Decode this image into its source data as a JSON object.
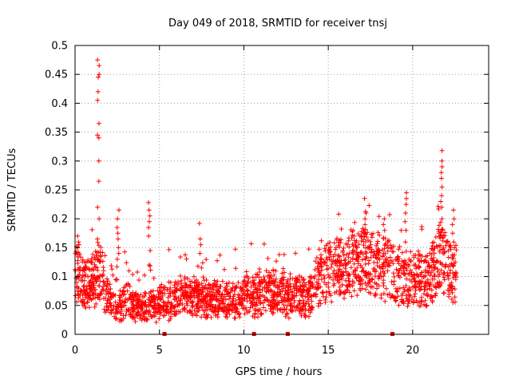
{
  "chart_data": {
    "type": "scatter",
    "title": "Day 049 of 2018, SRMTID for receiver tnsj",
    "xlabel": "GPS time / hours",
    "ylabel": "SRMTID / TECUs",
    "xlim": [
      0,
      24.5
    ],
    "ylim": [
      0,
      0.5
    ],
    "x_ticks": [
      0,
      5,
      10,
      15,
      20
    ],
    "x_tick_labels": [
      "0",
      "5",
      "10",
      "15",
      "20"
    ],
    "y_ticks": [
      0,
      0.05,
      0.1,
      0.15,
      0.2,
      0.25,
      0.3,
      0.35,
      0.4,
      0.45,
      0.5
    ],
    "y_tick_labels": [
      "0",
      "0.05",
      "0.1",
      "0.15",
      "0.2",
      "0.25",
      "0.3",
      "0.35",
      "0.4",
      "0.45",
      "0.5"
    ],
    "grid": true,
    "marker": "+",
    "color": "#ff0000",
    "data_end_hours": 22.6,
    "baseline_profile": [
      [
        0.0,
        0.11
      ],
      [
        0.5,
        0.085
      ],
      [
        1.0,
        0.09
      ],
      [
        1.5,
        0.1
      ],
      [
        2.0,
        0.06
      ],
      [
        2.5,
        0.045
      ],
      [
        3.0,
        0.06
      ],
      [
        3.5,
        0.05
      ],
      [
        4.0,
        0.045
      ],
      [
        4.5,
        0.05
      ],
      [
        5.0,
        0.055
      ],
      [
        6.0,
        0.06
      ],
      [
        7.0,
        0.065
      ],
      [
        8.0,
        0.06
      ],
      [
        9.0,
        0.06
      ],
      [
        10.0,
        0.065
      ],
      [
        11.0,
        0.07
      ],
      [
        12.0,
        0.075
      ],
      [
        13.0,
        0.065
      ],
      [
        14.0,
        0.07
      ],
      [
        14.5,
        0.09
      ],
      [
        15.0,
        0.11
      ],
      [
        16.0,
        0.115
      ],
      [
        17.0,
        0.13
      ],
      [
        18.0,
        0.12
      ],
      [
        19.0,
        0.1
      ],
      [
        19.5,
        0.085
      ],
      [
        20.0,
        0.095
      ],
      [
        21.0,
        0.1
      ],
      [
        21.5,
        0.14
      ],
      [
        22.0,
        0.12
      ],
      [
        22.6,
        0.1
      ]
    ],
    "spikes": [
      {
        "x": 0.2,
        "y": [
          0.17,
          0.16,
          0.155,
          0.15
        ]
      },
      {
        "x": 1.38,
        "y": [
          0.475,
          0.465,
          0.45,
          0.445,
          0.42,
          0.405,
          0.365,
          0.345,
          0.34,
          0.3,
          0.265,
          0.22,
          0.2,
          0.165,
          0.13
        ]
      },
      {
        "x": 2.55,
        "y": [
          0.215,
          0.2,
          0.185,
          0.175,
          0.165,
          0.15,
          0.14,
          0.13
        ]
      },
      {
        "x": 4.4,
        "y": [
          0.228,
          0.215,
          0.205,
          0.195,
          0.185,
          0.17,
          0.145,
          0.12
        ]
      },
      {
        "x": 7.4,
        "y": [
          0.192,
          0.165,
          0.155,
          0.14
        ]
      },
      {
        "x": 19.6,
        "y": [
          0.245,
          0.235,
          0.225,
          0.21,
          0.195,
          0.18,
          0.16
        ]
      },
      {
        "x": 21.7,
        "y": [
          0.318,
          0.3,
          0.29,
          0.28,
          0.27,
          0.255,
          0.24,
          0.23,
          0.22,
          0.2,
          0.18
        ]
      },
      {
        "x": 22.4,
        "y": [
          0.215,
          0.2,
          0.19,
          0.175,
          0.16
        ]
      },
      {
        "x": 17.2,
        "y": [
          0.21,
          0.2,
          0.19,
          0.175
        ]
      },
      {
        "x": 18.3,
        "y": [
          0.2,
          0.19,
          0.18
        ]
      }
    ],
    "gap_markers_x": [
      5.3,
      10.6,
      12.6,
      18.8
    ]
  }
}
